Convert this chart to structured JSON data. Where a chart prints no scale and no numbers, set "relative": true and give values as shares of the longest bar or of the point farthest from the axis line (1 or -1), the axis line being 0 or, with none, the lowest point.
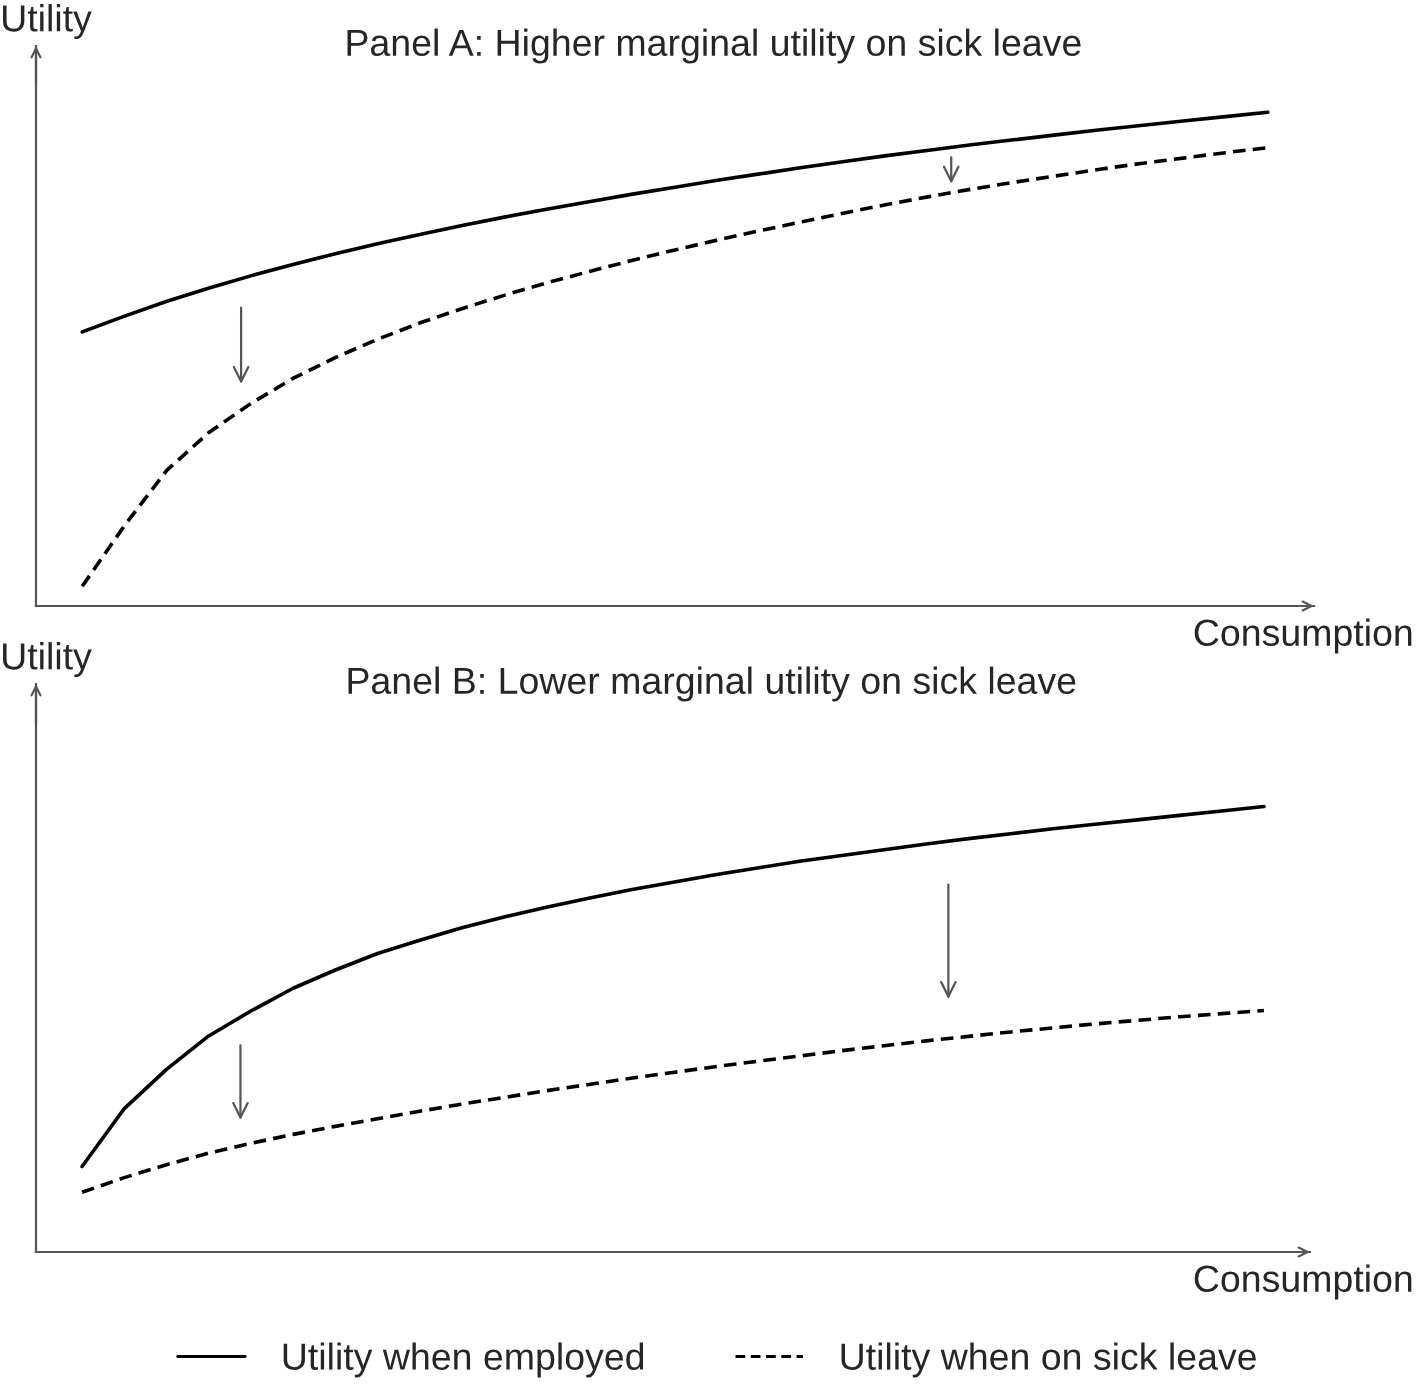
{
  "chart_data": [
    {
      "type": "line",
      "title": "Panel A: Higher marginal utility on sick leave",
      "xlabel": "Consumption",
      "ylabel": "Utility",
      "relative": true,
      "categories": [
        null,
        null,
        null,
        null,
        null,
        null,
        null,
        null,
        null,
        null,
        null,
        null,
        null,
        null,
        null,
        null,
        null,
        null,
        null,
        null,
        null,
        null,
        null,
        null,
        null,
        null,
        null,
        null,
        null
      ],
      "series": [
        {
          "color": "#000000",
          "line_style": "solid",
          "values": [
            0.555,
            0.587,
            0.617,
            0.644,
            0.669,
            0.692,
            0.714,
            0.734,
            0.753,
            0.771,
            0.788,
            0.804,
            0.819,
            0.834,
            0.848,
            0.862,
            0.875,
            0.888,
            0.9,
            0.912,
            0.923,
            0.934,
            0.944,
            0.954,
            0.964,
            0.973,
            0.982,
            0.991,
            1.0
          ]
        },
        {
          "color": "#000000",
          "line_style": "dashed",
          "values": [
            0.04,
            0.163,
            0.275,
            0.352,
            0.411,
            0.462,
            0.504,
            0.541,
            0.574,
            0.603,
            0.63,
            0.655,
            0.678,
            0.7,
            0.721,
            0.741,
            0.76,
            0.778,
            0.796,
            0.813,
            0.829,
            0.844,
            0.858,
            0.871,
            0.884,
            0.896,
            0.907,
            0.918,
            0.928
          ]
        }
      ]
    },
    {
      "type": "line",
      "title": "Panel B: Lower marginal utility on sick leave",
      "xlabel": "Consumption",
      "ylabel": "Utility",
      "relative": true,
      "legend": "bottom",
      "categories": [
        null,
        null,
        null,
        null,
        null,
        null,
        null,
        null,
        null,
        null,
        null,
        null,
        null,
        null,
        null,
        null,
        null,
        null,
        null,
        null,
        null,
        null,
        null,
        null,
        null,
        null,
        null,
        null,
        null
      ],
      "series": [
        {
          "name": "Utility when employed",
          "color": "#000000",
          "line_style": "solid",
          "values": [
            0.192,
            0.322,
            0.41,
            0.485,
            0.541,
            0.592,
            0.633,
            0.67,
            0.7,
            0.728,
            0.752,
            0.774,
            0.794,
            0.813,
            0.83,
            0.847,
            0.862,
            0.877,
            0.89,
            0.903,
            0.916,
            0.928,
            0.939,
            0.95,
            0.96,
            0.97,
            0.98,
            0.99,
            1.0
          ]
        },
        {
          "name": "Utility when on sick leave",
          "color": "#000000",
          "line_style": "dashed",
          "values": [
            0.134,
            0.167,
            0.196,
            0.222,
            0.244,
            0.264,
            0.282,
            0.299,
            0.316,
            0.332,
            0.347,
            0.362,
            0.376,
            0.39,
            0.403,
            0.416,
            0.428,
            0.44,
            0.452,
            0.463,
            0.474,
            0.484,
            0.494,
            0.503,
            0.512,
            0.52,
            0.528,
            0.535,
            0.542
          ]
        }
      ]
    }
  ]
}
